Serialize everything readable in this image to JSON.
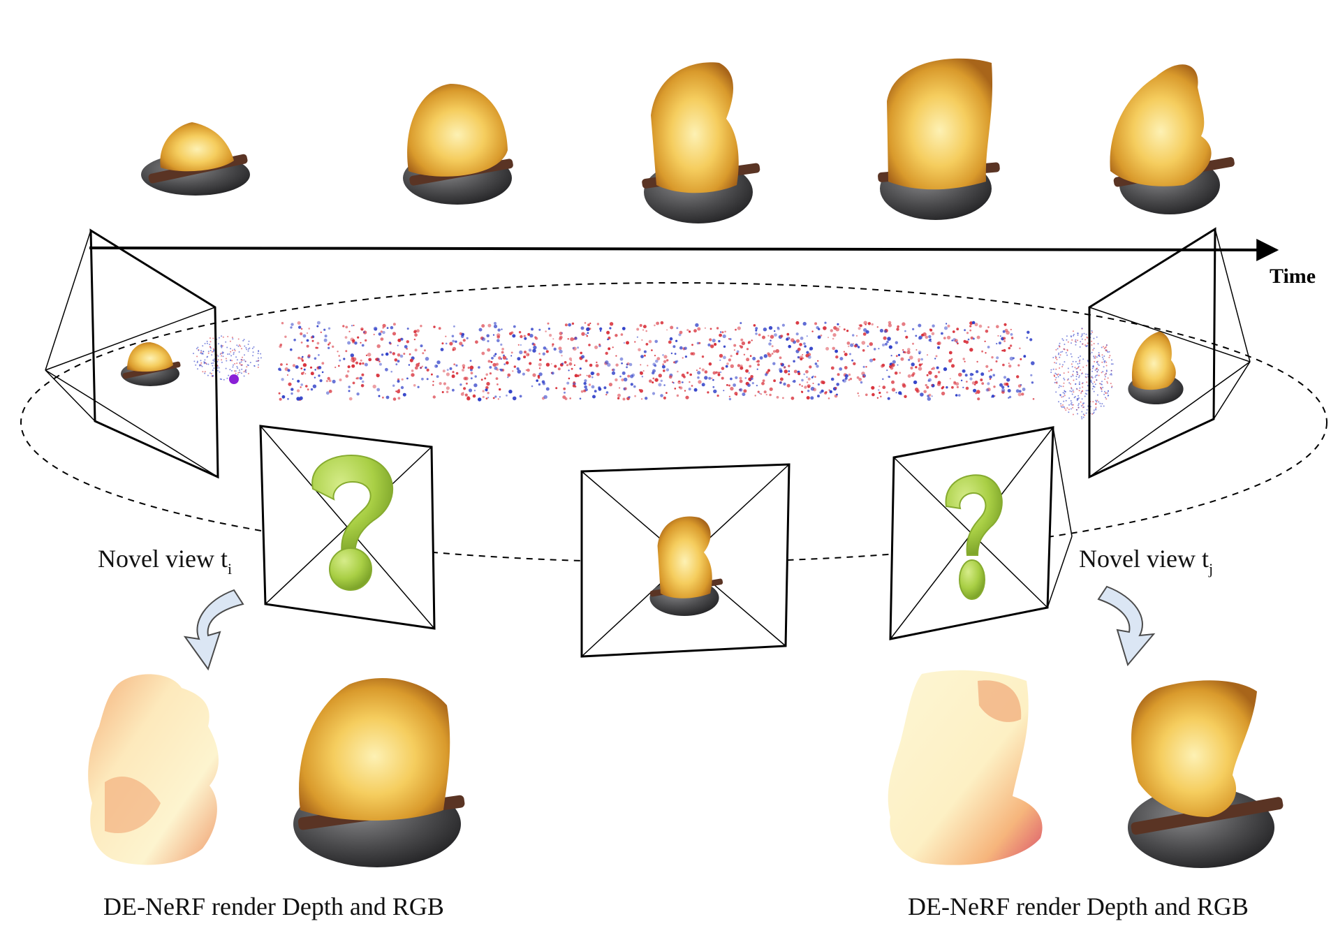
{
  "labels": {
    "time_axis": "Time",
    "novel_view_left": "Novel view t",
    "novel_view_left_sub": "i",
    "novel_view_right": "Novel view t",
    "novel_view_right_sub": "j",
    "caption_left": "DE-NeRF render Depth and RGB",
    "caption_right": "DE-NeRF render Depth and RGB"
  },
  "colors": {
    "flame_core": "#fbe79a",
    "flame_mid": "#f2c24c",
    "flame_dark": "#b9761d",
    "rock": "#4a4a4c",
    "log": "#5a3424",
    "question_mark": "#a9cf45",
    "point_red": "#d8303a",
    "point_blue": "#3040c8",
    "depth_light": "#fdf3c8",
    "depth_warm": "#f2a36a",
    "arrow_fill": "#dbe6f4"
  },
  "icons": {
    "campfire": "campfire-icon",
    "question": "question-mark-icon",
    "camera": "camera-frustum-icon",
    "arrow": "curved-arrow-icon"
  }
}
